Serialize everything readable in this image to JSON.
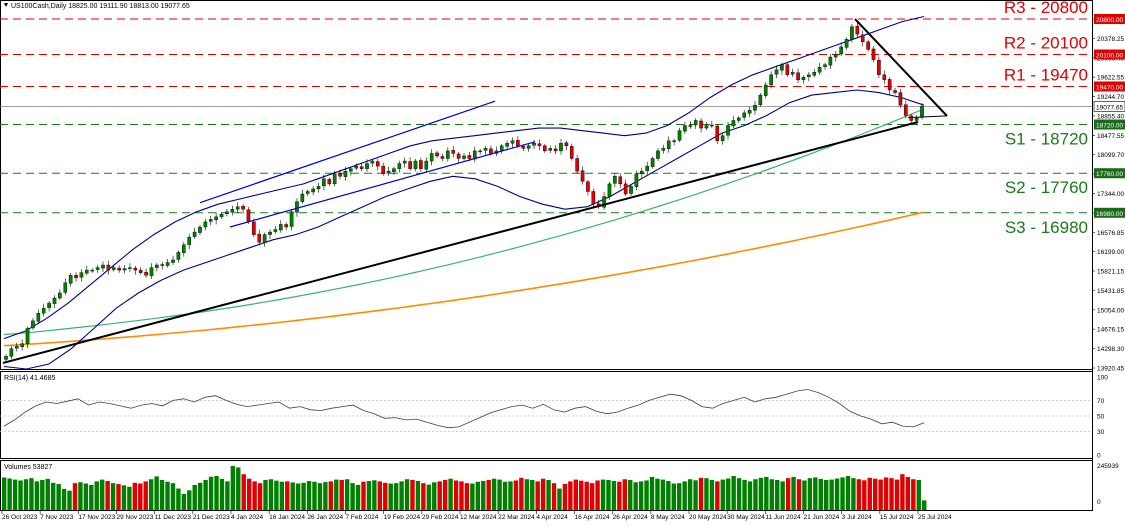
{
  "header": {
    "title": "US100Cash,Daily  18825.00 19111.90 18813.00 19077.65",
    "icon": "chart-triangle-icon"
  },
  "colors": {
    "bull": "#008000",
    "bear": "#e00000",
    "resistance": "#e00000",
    "support": "#1a7a1a",
    "ma_green": "#3cb371",
    "ma_orange": "#ff8c00",
    "bands": "#00008b",
    "trend": "#000000",
    "channel": "#0000cd",
    "price_line": "#808080"
  },
  "chart_data": [
    {
      "type": "candlestick",
      "title": "US100Cash,Daily  18825.00 19111.90 18813.00 19077.65",
      "y_ticks": [
        "20800.00",
        "20378.25",
        "20000.40",
        "19622.55",
        "19244.70",
        "18855.40",
        "18477.55",
        "18099.70",
        "17721.85",
        "17344.00",
        "16954.70",
        "16576.85",
        "16199.00",
        "15821.15",
        "15431.85",
        "15054.00",
        "14676.15",
        "14298.30",
        "13920.45"
      ],
      "ylim": [
        13920.45,
        21134
      ],
      "x_ticks": [
        "26 Oct 2023",
        "7 Nov 2023",
        "17 Nov 2023",
        "29 Nov 2023",
        "11 Dec 2023",
        "21 Dec 2023",
        "4 Jan 2024",
        "16 Jan 2024",
        "26 Jan 2024",
        "7 Feb 2024",
        "19 Feb 2024",
        "29 Feb 2024",
        "12 Mar 2024",
        "22 Mar 2024",
        "4 Apr 2024",
        "16 Apr 2024",
        "26 Apr 2024",
        "8 May 2024",
        "20 May 2024",
        "30 May 2024",
        "11 Jun 2024",
        "21 Jun 2024",
        "3 Jul 2024",
        "15 Jul 2024",
        "25 Jul 2024"
      ],
      "closes": [
        14150,
        14300,
        14350,
        14400,
        14700,
        14850,
        15000,
        15100,
        15200,
        15300,
        15400,
        15600,
        15750,
        15700,
        15800,
        15850,
        15850,
        15900,
        15950,
        15850,
        15900,
        15850,
        15880,
        15900,
        15850,
        15800,
        15750,
        15900,
        15950,
        15950,
        16000,
        16050,
        16200,
        16350,
        16500,
        16600,
        16700,
        16800,
        16850,
        16900,
        16950,
        17000,
        17050,
        17100,
        17050,
        16800,
        16550,
        16400,
        16550,
        16600,
        16650,
        16750,
        16700,
        17000,
        17200,
        17350,
        17400,
        17450,
        17500,
        17650,
        17550,
        17750,
        17700,
        17800,
        17850,
        17900,
        17850,
        17950,
        18000,
        17900,
        17750,
        17800,
        17850,
        17950,
        18000,
        17850,
        18000,
        17850,
        18000,
        18150,
        18100,
        18050,
        18200,
        18150,
        18050,
        18100,
        18050,
        18200,
        18200,
        18250,
        18150,
        18200,
        18300,
        18350,
        18400,
        18300,
        18250,
        18300,
        18350,
        18300,
        18200,
        18250,
        18200,
        18350,
        18300,
        18050,
        17800,
        17600,
        17400,
        17150,
        17100,
        17300,
        17550,
        17700,
        17550,
        17350,
        17500,
        17750,
        17800,
        17900,
        18050,
        18200,
        18250,
        18400,
        18400,
        18600,
        18700,
        18700,
        18800,
        18650,
        18700,
        18700,
        18400,
        18500,
        18700,
        18800,
        18850,
        18950,
        19000,
        19100,
        19300,
        19500,
        19700,
        19800,
        19900,
        19700,
        19750,
        19600,
        19650,
        19700,
        19750,
        19850,
        19900,
        20050,
        20100,
        20250,
        20400,
        20650,
        20500,
        20350,
        20200,
        20000,
        19700,
        19600,
        19400,
        19350,
        19100,
        18900,
        18800,
        18850,
        19077.65
      ],
      "series": [
        {
          "name": "",
          "kind": "moving-average-100",
          "color": "#3cb371",
          "values": [
            14580,
            14605,
            14635,
            14667,
            14702,
            14737,
            14773,
            14811,
            14850,
            14891,
            14933,
            14977,
            15023,
            15071,
            15121,
            15173,
            15227,
            15283,
            15341,
            15401,
            15463,
            15527,
            15593,
            15661,
            15731,
            15803,
            15877,
            15953,
            16031,
            16111,
            16193,
            16277,
            16363,
            16451,
            16541,
            16633,
            16727,
            16823,
            16921,
            17021,
            17123,
            17227,
            17333,
            17441,
            17551,
            17663,
            17777,
            17893,
            18011,
            18131,
            18253,
            18377,
            18503,
            18631,
            18761,
            18893,
            19027
          ]
        },
        {
          "name": "",
          "kind": "moving-average-200",
          "color": "#ff8c00",
          "values": [
            14360,
            14380,
            14400,
            14422,
            14444,
            14468,
            14492,
            14518,
            14544,
            14572,
            14600,
            14630,
            14660,
            14692,
            14724,
            14758,
            14792,
            14828,
            14864,
            14902,
            14940,
            14980,
            15020,
            15062,
            15104,
            15148,
            15192,
            15238,
            15284,
            15332,
            15380,
            15430,
            15480,
            15532,
            15584,
            15638,
            15692,
            15748,
            15804,
            15862,
            15920,
            15980,
            16040,
            16102,
            16164,
            16228,
            16292,
            16358,
            16424,
            16492,
            16560,
            16630,
            16700,
            16772,
            16844,
            16918,
            16992
          ]
        },
        {
          "name": "",
          "kind": "bollinger-upper",
          "color": "#00008b",
          "values": [
            14500,
            14650,
            14900,
            15200,
            15550,
            15900,
            16250,
            16550,
            16800,
            17000,
            17150,
            17250,
            17350,
            17450,
            17550,
            17700,
            17850,
            18000,
            18150,
            18300,
            18400,
            18450,
            18500,
            18550,
            18600,
            18650,
            18650,
            18600,
            18550,
            18500,
            18550,
            18700,
            18950,
            19250,
            19500,
            19700,
            19850,
            20000,
            20150,
            20300,
            20450,
            20600,
            20750,
            20850
          ]
        },
        {
          "name": "",
          "kind": "bollinger-lower",
          "color": "#00008b",
          "values": [
            13950,
            13900,
            14000,
            14300,
            14700,
            15100,
            15400,
            15650,
            15850,
            16000,
            16150,
            16300,
            16450,
            16550,
            16700,
            16900,
            17100,
            17300,
            17450,
            17600,
            17700,
            17650,
            17500,
            17300,
            17150,
            17050,
            17100,
            17300,
            17550,
            17800,
            18050,
            18300,
            18550,
            18700,
            18900,
            19150,
            19300,
            19350,
            19400,
            19350,
            19250,
            19100
          ]
        }
      ],
      "rsi": {
        "label": "RSI(14) 41.4685",
        "ticks": [
          "100",
          "70",
          "50",
          "30",
          "0"
        ],
        "values": [
          37,
          45,
          55,
          63,
          68,
          66,
          69,
          72,
          64,
          68,
          66,
          63,
          60,
          64,
          66,
          63,
          70,
          72,
          68,
          74,
          76,
          70,
          65,
          62,
          64,
          66,
          68,
          60,
          62,
          58,
          57,
          60,
          62,
          64,
          57,
          53,
          47,
          48,
          45,
          46,
          42,
          38,
          35,
          36,
          42,
          48,
          54,
          58,
          62,
          64,
          60,
          65,
          58,
          55,
          60,
          62,
          56,
          53,
          55,
          60,
          64,
          70,
          74,
          78,
          76,
          70,
          62,
          60,
          66,
          70,
          74,
          68,
          72,
          74,
          78,
          82,
          84,
          80,
          74,
          66,
          56,
          50,
          46,
          40,
          42,
          37,
          36,
          41.47
        ]
      },
      "volumes": {
        "label": "Volumes 53827",
        "ticks": [
          "245939",
          "0"
        ],
        "values": [
          182000,
          176000,
          170000,
          165000,
          172000,
          178000,
          160000,
          168000,
          174000,
          152000,
          145000,
          118000,
          108000,
          150000,
          155000,
          148000,
          140000,
          160000,
          170000,
          162000,
          150000,
          145000,
          138000,
          130000,
          152000,
          148000,
          160000,
          172000,
          188000,
          168000,
          158000,
          150000,
          120000,
          90000,
          110000,
          140000,
          152000,
          168000,
          186000,
          190000,
          174000,
          160000,
          245939,
          238000,
          200000,
          175000,
          160000,
          150000,
          168000,
          172000,
          164000,
          158000,
          160000,
          154000,
          148000,
          152000,
          162000,
          158000,
          150000,
          156000,
          160000,
          170000,
          168000,
          172000,
          150000,
          140000,
          158000,
          162000,
          166000,
          160000,
          152000,
          148000,
          150000,
          160000,
          172000,
          168000,
          162000,
          150000,
          142000,
          155000,
          160000,
          168000,
          175000,
          165000,
          160000,
          150000,
          148000,
          158000,
          162000,
          168000,
          175000,
          170000,
          158000,
          160000,
          165000,
          180000,
          172000,
          168000,
          160000,
          175000,
          168000,
          150000,
          120000,
          146000,
          160000,
          170000,
          164000,
          158000,
          150000,
          165000,
          170000,
          168000,
          162000,
          158000,
          172000,
          168000,
          155000,
          160000,
          165000,
          185000,
          175000,
          170000,
          162000,
          148000,
          150000,
          160000,
          172000,
          166000,
          180000,
          178000,
          168000,
          160000,
          170000,
          176000,
          190000,
          178000,
          168000,
          160000,
          172000,
          180000,
          185000,
          172000,
          168000,
          160000,
          178000,
          185000,
          172000,
          165000,
          178000,
          182000,
          174000,
          168000,
          170000,
          176000,
          182000,
          190000,
          178000,
          172000,
          166000,
          180000,
          175000,
          170000,
          182000,
          178000,
          170000,
          200000,
          185000,
          172000,
          168000,
          53827
        ]
      }
    }
  ],
  "levels": [
    {
      "name": "R3",
      "label": "R3 - 20800",
      "value": 20800,
      "badge": "20800.00",
      "kind": "resistance"
    },
    {
      "name": "R2",
      "label": "R2 - 20100",
      "value": 20100,
      "badge": "20100.00",
      "kind": "resistance"
    },
    {
      "name": "R1",
      "label": "R1 - 19470",
      "value": 19470,
      "badge": "19470.00",
      "kind": "resistance"
    },
    {
      "name": "S1",
      "label": "S1 - 18720",
      "value": 18720,
      "badge": "18720.00",
      "kind": "support"
    },
    {
      "name": "S2",
      "label": "S2 - 17760",
      "value": 17760,
      "badge": "17760.00",
      "kind": "support"
    },
    {
      "name": "S3",
      "label": "S3 - 16980",
      "value": 16980,
      "badge": "16980.00",
      "kind": "support"
    }
  ],
  "current_price": {
    "value": 19077.65,
    "badge": "19077.65"
  }
}
